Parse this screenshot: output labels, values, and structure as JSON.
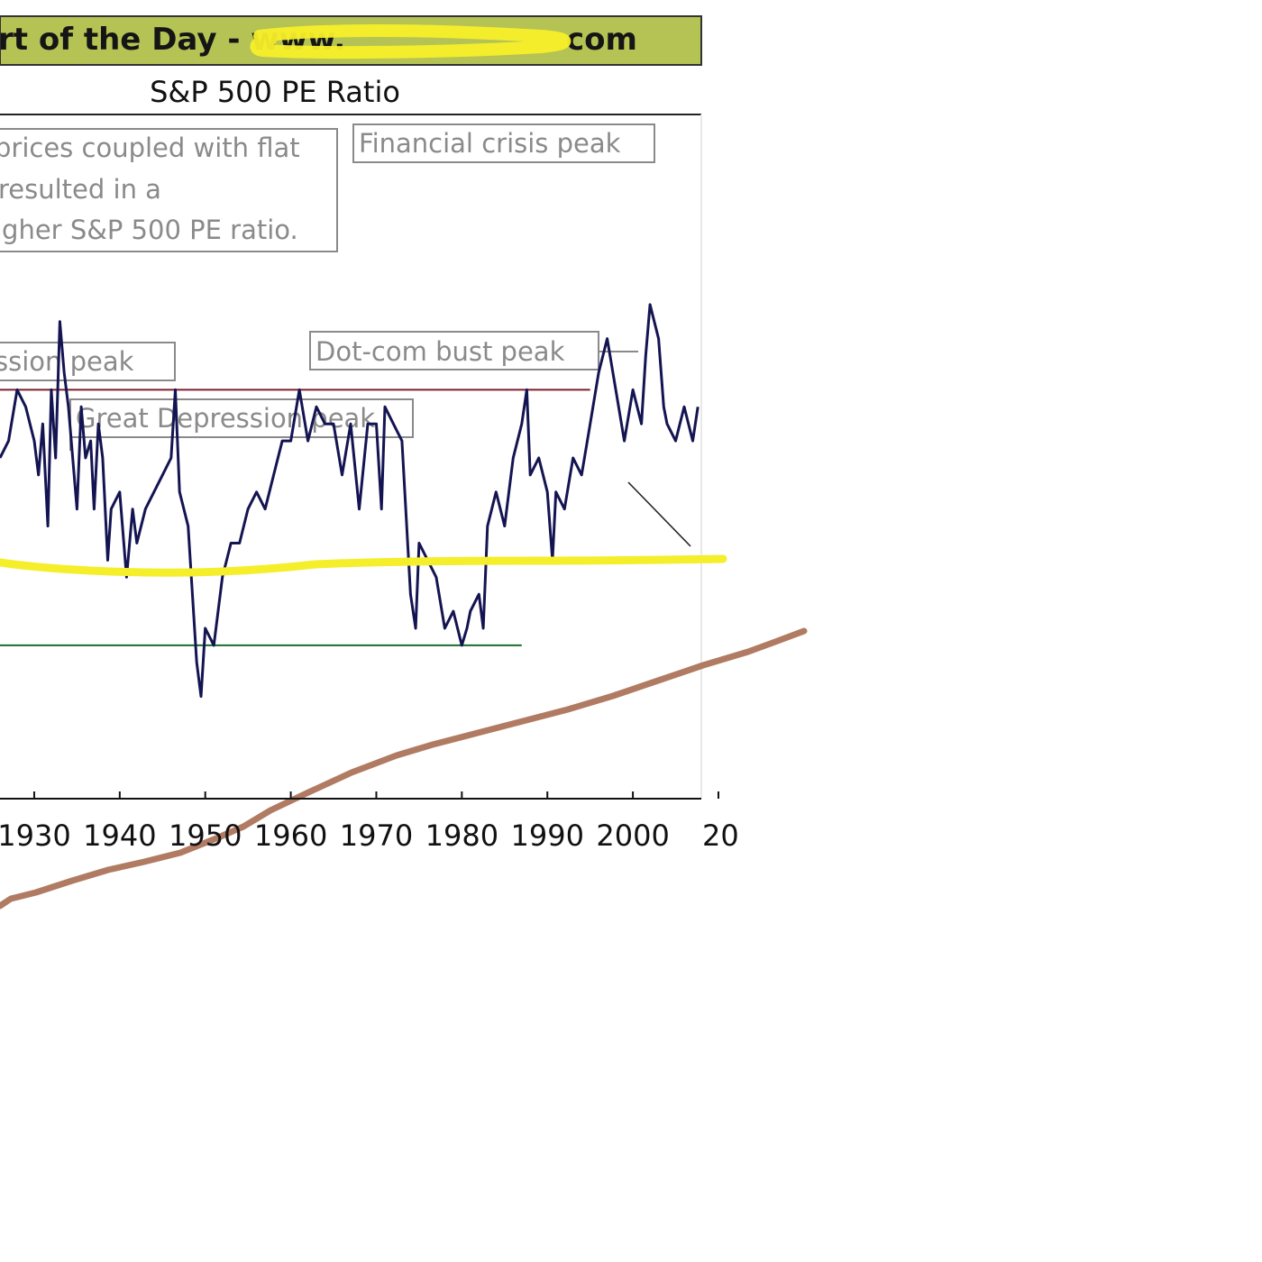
{
  "header": {
    "text": "rt of the Day - www.",
    "url_tail": "com",
    "background": "#b5c354"
  },
  "chart_data": {
    "type": "line",
    "title": "S&P 500 PE Ratio",
    "xlabel": "",
    "ylabel": "",
    "xlim": [
      1926,
      2008
    ],
    "ylim": [
      -2,
      38
    ],
    "x_ticks": [
      "1930",
      "1940",
      "1950",
      "1960",
      "1970",
      "1980",
      "1990",
      "2000",
      "20"
    ],
    "grid": false,
    "series": [
      {
        "color": "#141452",
        "x": [
          1926,
          1927,
          1928,
          1929,
          1930,
          1930.5,
          1931,
          1931.6,
          1932,
          1932.5,
          1933,
          1933.5,
          1934,
          1935,
          1935.5,
          1936,
          1936.6,
          1937,
          1937.5,
          1938,
          1938.6,
          1939,
          1940,
          1940.8,
          1941.5,
          1942,
          1943,
          1944,
          1945,
          1946,
          1946.5,
          1947,
          1948,
          1949,
          1949.5,
          1950,
          1951,
          1952,
          1953,
          1954,
          1955,
          1956,
          1957,
          1958,
          1959,
          1960,
          1961,
          1962,
          1963,
          1964,
          1965,
          1966,
          1967,
          1968,
          1969,
          1970,
          1970.6,
          1971,
          1972,
          1973,
          1974,
          1974.6,
          1975,
          1976,
          1977,
          1978,
          1979,
          1980,
          1980.6,
          1981,
          1982,
          1982.5,
          1983,
          1984,
          1985,
          1986,
          1987,
          1987.6,
          1988,
          1989,
          1990,
          1990.6,
          1991,
          1992,
          1993,
          1994,
          1995,
          1996,
          1997,
          1998,
          1999,
          2000,
          2001,
          2001.5,
          2002,
          2003,
          2003.6,
          2004,
          2005,
          2006,
          2007,
          2007.6
        ],
        "y": [
          18,
          19,
          22,
          21,
          19,
          17,
          20,
          14,
          22,
          18,
          26,
          23,
          21,
          15,
          21,
          18,
          19,
          15,
          20,
          18,
          12,
          15,
          16,
          11,
          15,
          13,
          15,
          16,
          17,
          18,
          22,
          16,
          14,
          6,
          4,
          8,
          7,
          11,
          13,
          13,
          15,
          16,
          15,
          17,
          19,
          19,
          22,
          19,
          21,
          20,
          20,
          17,
          20,
          15,
          20,
          20,
          15,
          21,
          20,
          19,
          10,
          8,
          13,
          12,
          11,
          8,
          9,
          7,
          8,
          9,
          10,
          8,
          14,
          16,
          14,
          18,
          20,
          22,
          17,
          18,
          16,
          12,
          16,
          15,
          18,
          17,
          20,
          23,
          25,
          22,
          19,
          22,
          20,
          24,
          27,
          25,
          21,
          20,
          19,
          21,
          19,
          21
        ]
      }
    ],
    "reference_lines": [
      {
        "y": 22,
        "color": "#7a2030"
      },
      {
        "y": 7,
        "color": "#1e6b2e"
      }
    ],
    "overlay_marks": [
      {
        "type": "yellow-hand-drawn-line",
        "color": "#f5ee2a",
        "y": 18
      },
      {
        "type": "brown-hand-drawn-trend",
        "color": "#b07b62"
      }
    ],
    "annotations": [
      {
        "name": "note",
        "lines": [
          "prices coupled with flat",
          "resulted in a",
          "igher S&P 500 PE ratio."
        ]
      },
      {
        "name": "financial-crisis",
        "text": "Financial crisis peak"
      },
      {
        "name": "depression-left",
        "text": "ssion peak"
      },
      {
        "name": "dot-com",
        "text": "Dot-com bust peak"
      },
      {
        "name": "great-depression",
        "text": "Great Depression peak"
      }
    ]
  }
}
